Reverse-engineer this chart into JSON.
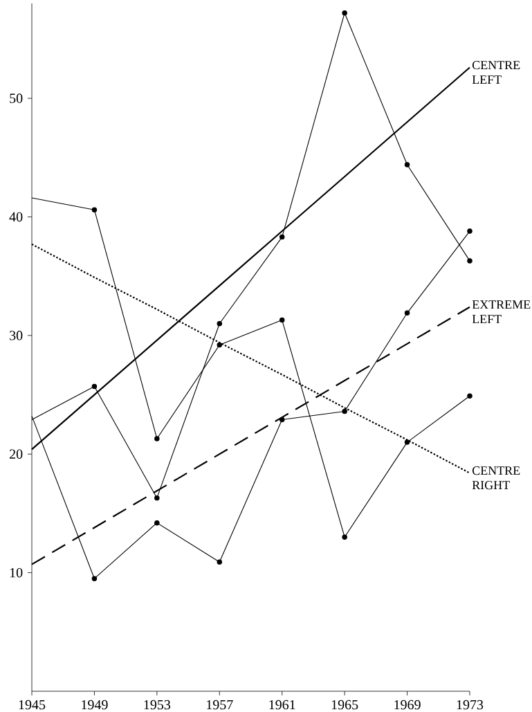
{
  "chart_data": {
    "type": "line",
    "x": [
      1945,
      1949,
      1953,
      1957,
      1961,
      1965,
      1969,
      1973
    ],
    "xlim": [
      1945,
      1973
    ],
    "ylim": [
      0,
      58
    ],
    "xticks": [
      1945,
      1949,
      1953,
      1957,
      1961,
      1965,
      1969,
      1973
    ],
    "yticks": [
      10,
      20,
      30,
      40,
      50
    ],
    "grid": false,
    "legend": false,
    "series": [
      {
        "color": "#000000",
        "marker": "circle",
        "line_style": "solid",
        "values": [
          41.6,
          40.6,
          21.3,
          29.2,
          31.3,
          13.0,
          21.0,
          24.9
        ]
      },
      {
        "color": "#000000",
        "marker": "circle",
        "line_style": "solid",
        "values": [
          22.9,
          25.7,
          16.3,
          31.0,
          38.3,
          57.2,
          44.4,
          36.3
        ]
      },
      {
        "color": "#000000",
        "marker": "circle",
        "line_style": "solid",
        "values": [
          23.2,
          9.5,
          14.2,
          10.9,
          22.9,
          23.6,
          31.9,
          38.8
        ]
      },
      {
        "name": "CENTRE LEFT",
        "color": "#000000",
        "marker": "none",
        "line_style": "solid",
        "values": [
          20.4,
          25.0,
          29.6,
          34.2,
          38.8,
          43.4,
          48.0,
          52.6
        ]
      },
      {
        "name": "EXTREME LEFT",
        "color": "#000000",
        "marker": "none",
        "line_style": "dashed",
        "values": [
          10.7,
          13.8,
          16.9,
          20.0,
          23.1,
          26.2,
          29.3,
          32.4
        ]
      },
      {
        "name": "CENTRE RIGHT",
        "color": "#000000",
        "marker": "none",
        "line_style": "dotted",
        "values": [
          37.7,
          34.9,
          32.2,
          29.4,
          26.7,
          23.9,
          21.2,
          18.4
        ]
      }
    ]
  }
}
